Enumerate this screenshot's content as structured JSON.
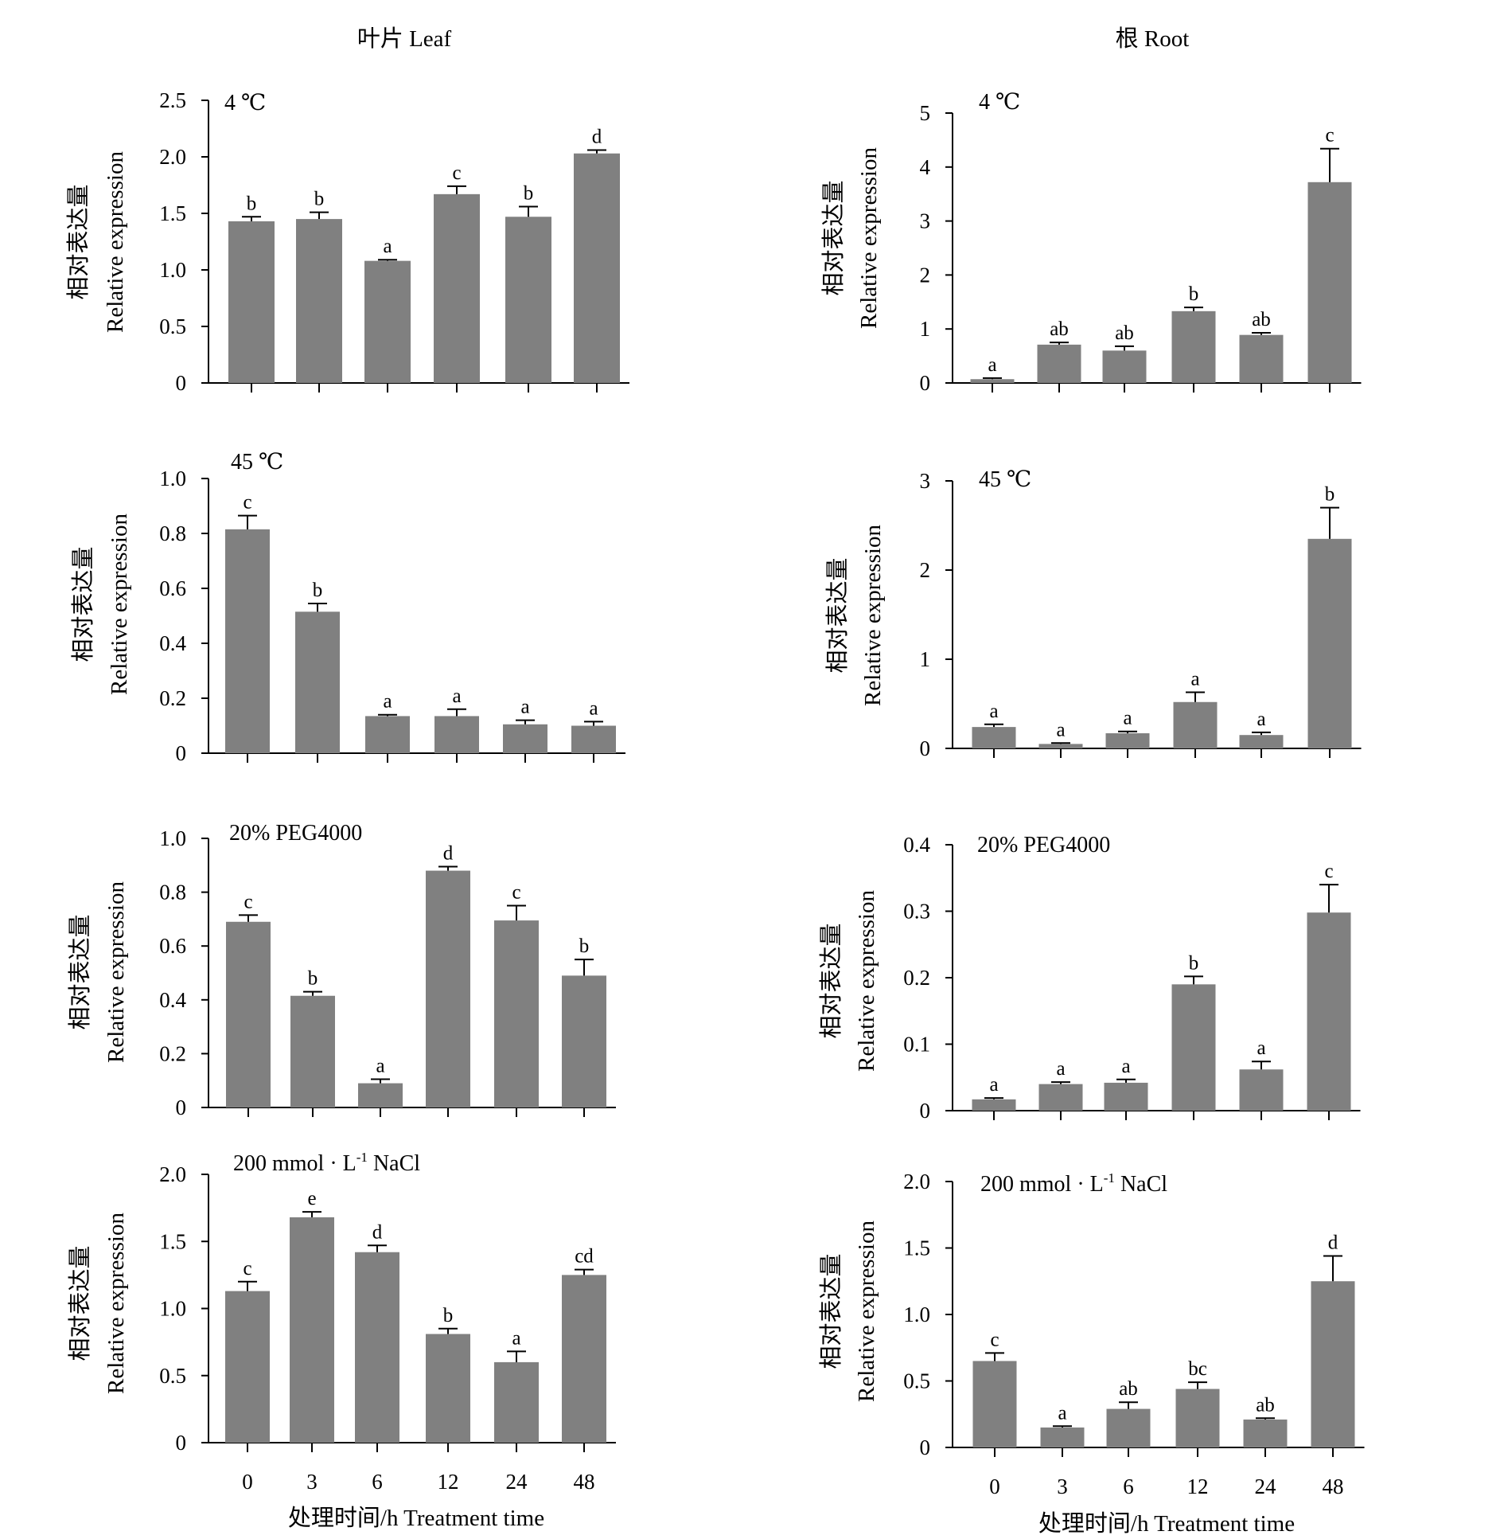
{
  "figure": {
    "column_titles": [
      "叶片 Leaf",
      "根 Root"
    ],
    "ylabel_cn": "相对表达量",
    "ylabel_en": "Relative expression",
    "xlabel": "处理时间/h Treatment time",
    "bar_color": "#808080"
  },
  "chart_data": [
    {
      "type": "bar",
      "panel": "leaf-4C",
      "condition": "4 ℃",
      "categories": [
        "0",
        "3",
        "6",
        "12",
        "24",
        "48"
      ],
      "values": [
        1.43,
        1.45,
        1.08,
        1.67,
        1.47,
        2.03
      ],
      "errors": [
        0.04,
        0.06,
        0.01,
        0.07,
        0.09,
        0.03
      ],
      "letters": [
        "b",
        "b",
        "a",
        "c",
        "b",
        "d"
      ],
      "ylim": [
        0,
        2.5
      ],
      "yticks": [
        "0",
        "0.5",
        "1.0",
        "1.5",
        "2.0",
        "2.5"
      ]
    },
    {
      "type": "bar",
      "panel": "root-4C",
      "condition": "4 ℃",
      "categories": [
        "0",
        "3",
        "6",
        "12",
        "24",
        "48"
      ],
      "values": [
        0.07,
        0.71,
        0.6,
        1.33,
        0.89,
        3.72
      ],
      "errors": [
        0.02,
        0.04,
        0.08,
        0.07,
        0.04,
        0.62
      ],
      "letters": [
        "a",
        "ab",
        "ab",
        "b",
        "ab",
        "c"
      ],
      "ylim": [
        0,
        5
      ],
      "yticks": [
        "0",
        "1",
        "2",
        "3",
        "4",
        "5"
      ]
    },
    {
      "type": "bar",
      "panel": "leaf-45C",
      "condition": "45 ℃",
      "categories": [
        "0",
        "3",
        "6",
        "12",
        "24",
        "48"
      ],
      "values": [
        0.815,
        0.515,
        0.135,
        0.135,
        0.105,
        0.1
      ],
      "errors": [
        0.05,
        0.03,
        0.005,
        0.025,
        0.015,
        0.015
      ],
      "letters": [
        "c",
        "b",
        "a",
        "a",
        "a",
        "a"
      ],
      "ylim": [
        0,
        1.0
      ],
      "yticks": [
        "0",
        "0.2",
        "0.4",
        "0.6",
        "0.8",
        "1.0"
      ]
    },
    {
      "type": "bar",
      "panel": "root-45C",
      "condition": "45 ℃",
      "categories": [
        "0",
        "3",
        "6",
        "12",
        "24",
        "48"
      ],
      "values": [
        0.24,
        0.05,
        0.17,
        0.52,
        0.15,
        2.35
      ],
      "errors": [
        0.03,
        0.01,
        0.02,
        0.11,
        0.03,
        0.35
      ],
      "letters": [
        "a",
        "a",
        "a",
        "a",
        "a",
        "b"
      ],
      "ylim": [
        0,
        3
      ],
      "yticks": [
        "0",
        "1",
        "2",
        "3"
      ]
    },
    {
      "type": "bar",
      "panel": "leaf-PEG",
      "condition": "20% PEG4000",
      "categories": [
        "0",
        "3",
        "6",
        "12",
        "24",
        "48"
      ],
      "values": [
        0.69,
        0.415,
        0.09,
        0.88,
        0.695,
        0.49
      ],
      "errors": [
        0.025,
        0.015,
        0.015,
        0.015,
        0.055,
        0.06
      ],
      "letters": [
        "c",
        "b",
        "a",
        "d",
        "c",
        "b"
      ],
      "ylim": [
        0,
        1.0
      ],
      "yticks": [
        "0",
        "0.2",
        "0.4",
        "0.6",
        "0.8",
        "1.0"
      ]
    },
    {
      "type": "bar",
      "panel": "root-PEG",
      "condition": "20% PEG4000",
      "categories": [
        "0",
        "3",
        "6",
        "12",
        "24",
        "48"
      ],
      "values": [
        0.017,
        0.04,
        0.042,
        0.19,
        0.062,
        0.298
      ],
      "errors": [
        0.002,
        0.003,
        0.005,
        0.012,
        0.012,
        0.042
      ],
      "letters": [
        "a",
        "a",
        "a",
        "b",
        "a",
        "c"
      ],
      "ylim": [
        0,
        0.4
      ],
      "yticks": [
        "0",
        "0.1",
        "0.2",
        "0.3",
        "0.4"
      ]
    },
    {
      "type": "bar",
      "panel": "leaf-NaCl",
      "condition": "200 mmol · L",
      "condition_sup": "-1",
      "condition_tail": " NaCl",
      "categories": [
        "0",
        "3",
        "6",
        "12",
        "24",
        "48"
      ],
      "values": [
        1.13,
        1.68,
        1.42,
        0.81,
        0.6,
        1.25
      ],
      "errors": [
        0.07,
        0.04,
        0.05,
        0.04,
        0.08,
        0.04
      ],
      "letters": [
        "c",
        "e",
        "d",
        "b",
        "a",
        "cd"
      ],
      "ylim": [
        0,
        2.0
      ],
      "yticks": [
        "0",
        "0.5",
        "1.0",
        "1.5",
        "2.0"
      ]
    },
    {
      "type": "bar",
      "panel": "root-NaCl",
      "condition": "200 mmol · L",
      "condition_sup": "-1",
      "condition_tail": " NaCl",
      "categories": [
        "0",
        "3",
        "6",
        "12",
        "24",
        "48"
      ],
      "values": [
        0.65,
        0.15,
        0.29,
        0.44,
        0.21,
        1.25
      ],
      "errors": [
        0.06,
        0.01,
        0.05,
        0.05,
        0.01,
        0.19
      ],
      "letters": [
        "c",
        "a",
        "ab",
        "bc",
        "ab",
        "d"
      ],
      "ylim": [
        0,
        2.0
      ],
      "yticks": [
        "0",
        "0.5",
        "1.0",
        "1.5",
        "2.0"
      ]
    }
  ]
}
